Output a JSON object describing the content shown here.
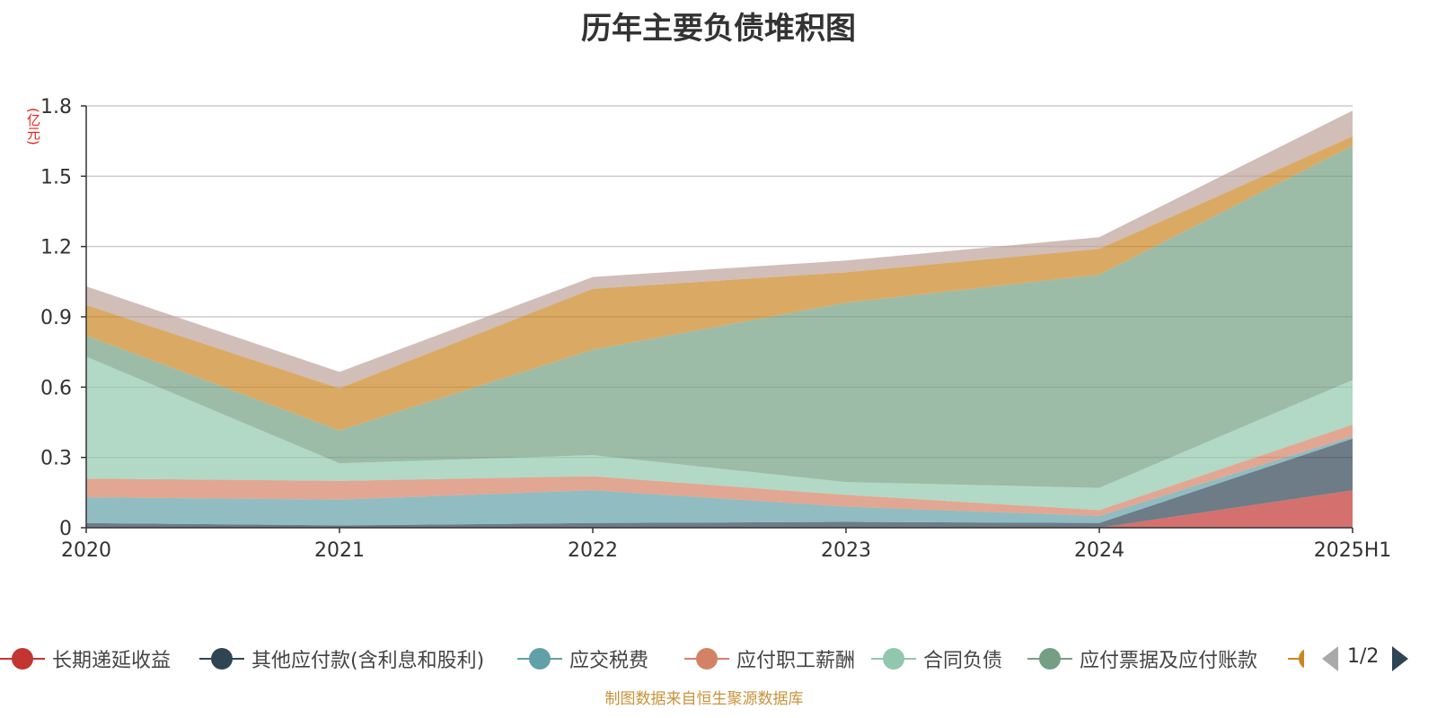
{
  "title": "历年主要负债堆积图",
  "unit_label": "(亿元)",
  "source": "制图数据来自恒生聚源数据库",
  "pager": {
    "text": "1/2"
  },
  "legend": [
    {
      "name": "长期递延收益",
      "color": "#c23531"
    },
    {
      "name": "其他应付款(含利息和股利)",
      "color": "#2f4554"
    },
    {
      "name": "应交税费",
      "color": "#61a0a8"
    },
    {
      "name": "应付职工薪酬",
      "color": "#d48265"
    },
    {
      "name": "合同负债",
      "color": "#91c7ae"
    },
    {
      "name": "应付票据及应付账款",
      "color": "#749f83"
    }
  ],
  "legend_partial_color": "#ca8622",
  "chart_data": {
    "type": "area",
    "stacked": true,
    "categories": [
      "2020",
      "2021",
      "2022",
      "2023",
      "2024",
      "2025H1"
    ],
    "ylim": [
      0,
      1.8
    ],
    "yticks": [
      "0",
      "0.3",
      "0.6",
      "0.9",
      "1.2",
      "1.5",
      "1.8"
    ],
    "grid": true,
    "series": [
      {
        "name": "长期递延收益",
        "color": "#c23531",
        "values": [
          0.0,
          0.0,
          0.0,
          0.0,
          0.0,
          0.16
        ]
      },
      {
        "name": "其他应付款(含利息和股利)",
        "color": "#2f4554",
        "values": [
          0.02,
          0.01,
          0.02,
          0.025,
          0.02,
          0.22
        ]
      },
      {
        "name": "应交税费",
        "color": "#61a0a8",
        "values": [
          0.11,
          0.11,
          0.14,
          0.065,
          0.03,
          0.01
        ]
      },
      {
        "name": "应付职工薪酬",
        "color": "#d48265",
        "values": [
          0.08,
          0.08,
          0.06,
          0.05,
          0.025,
          0.05
        ]
      },
      {
        "name": "合同负债",
        "color": "#91c7ae",
        "values": [
          0.52,
          0.075,
          0.09,
          0.055,
          0.095,
          0.19
        ]
      },
      {
        "name": "应付票据及应付账款",
        "color": "#749f83",
        "values": [
          0.09,
          0.14,
          0.45,
          0.765,
          0.91,
          1.0
        ]
      },
      {
        "name": "",
        "color": "#ca8622",
        "values": [
          0.13,
          0.18,
          0.26,
          0.13,
          0.11,
          0.04
        ]
      },
      {
        "name": "",
        "color": "#bda29a",
        "values": [
          0.08,
          0.07,
          0.05,
          0.05,
          0.05,
          0.11
        ]
      }
    ]
  }
}
